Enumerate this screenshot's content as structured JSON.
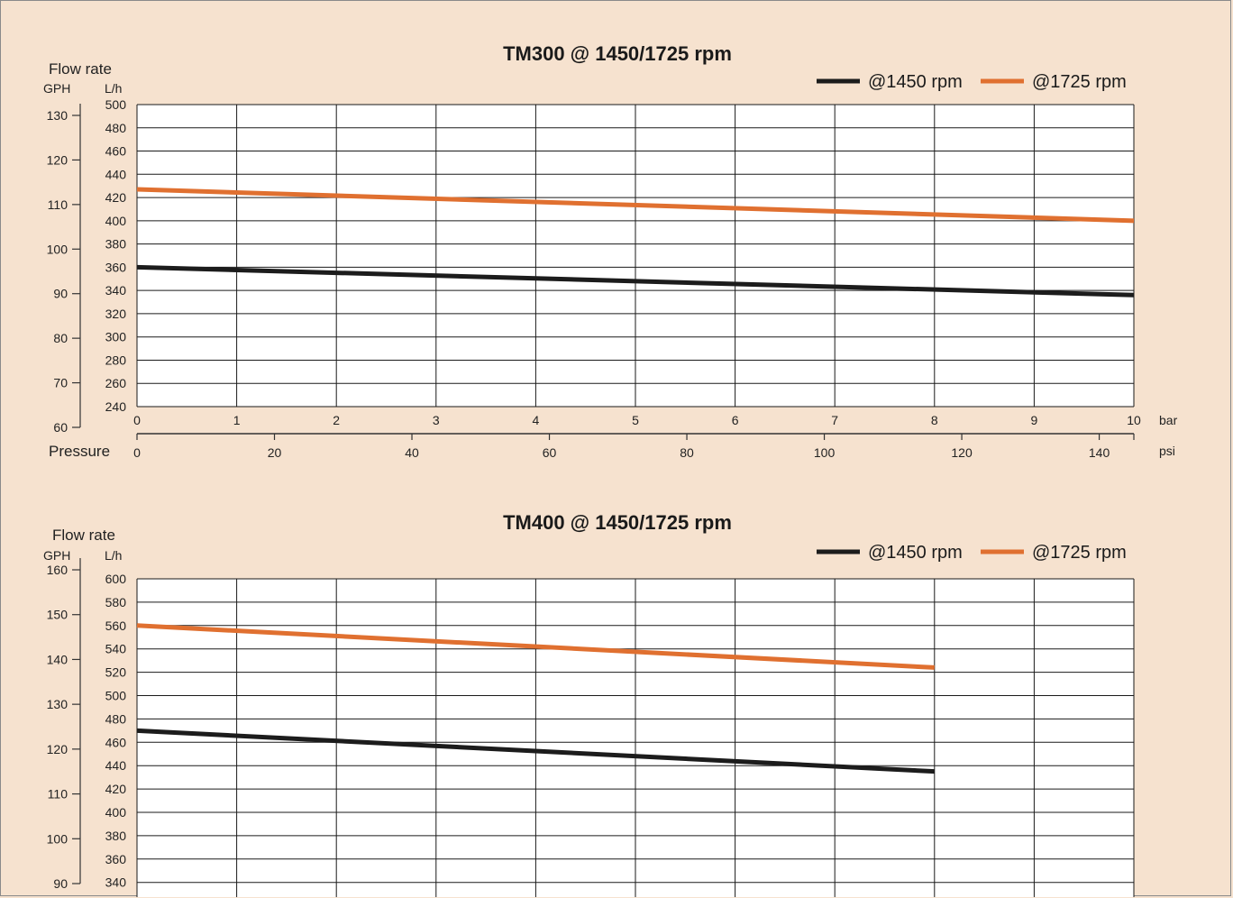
{
  "colors": {
    "background": "#f6e2cf",
    "plot_bg": "#ffffff",
    "grid": "#1a1a1a",
    "series_1450": "#1c1c1c",
    "series_1725": "#e07030"
  },
  "chart_data": [
    {
      "type": "line",
      "title": "TM300 @ 1450/1725 rpm",
      "flow_rate_label": "Flow rate",
      "ylabel_gph": "GPH",
      "ylabel_lh": "L/h",
      "xlabel": "Pressure",
      "x_unit_bar": "bar",
      "x_unit_psi": "psi",
      "bar_ticks": [
        "0",
        "1",
        "2",
        "3",
        "4",
        "5",
        "6",
        "7",
        "8",
        "9",
        "10"
      ],
      "psi_ticks": [
        "0",
        "20",
        "40",
        "60",
        "80",
        "100",
        "120",
        "140"
      ],
      "lh_ticks": [
        "240",
        "260",
        "280",
        "300",
        "320",
        "340",
        "360",
        "380",
        "400",
        "420",
        "440",
        "460",
        "480",
        "500"
      ],
      "gph_ticks": [
        "60",
        "70",
        "80",
        "90",
        "100",
        "110",
        "120",
        "130"
      ],
      "ylim_lh": [
        240,
        500
      ],
      "xlim_bar": [
        0,
        10
      ],
      "grid": true,
      "legend": "top-right",
      "series": [
        {
          "name": "@1450 rpm",
          "x": [
            0,
            10
          ],
          "y": [
            360,
            336
          ]
        },
        {
          "name": "@1725 rpm",
          "x": [
            0,
            10
          ],
          "y": [
            427,
            400
          ]
        }
      ]
    },
    {
      "type": "line",
      "title": "TM400 @ 1450/1725 rpm",
      "flow_rate_label": "Flow rate",
      "ylabel_gph": "GPH",
      "ylabel_lh": "L/h",
      "lh_ticks": [
        "340",
        "360",
        "380",
        "400",
        "420",
        "440",
        "460",
        "480",
        "500",
        "520",
        "540",
        "560",
        "580",
        "600"
      ],
      "gph_ticks": [
        "90",
        "100",
        "110",
        "120",
        "130",
        "140",
        "150",
        "160"
      ],
      "ylim_lh": [
        340,
        600
      ],
      "xlim_bar": [
        0,
        10
      ],
      "grid": true,
      "legend": "top-right",
      "series": [
        {
          "name": "@1450 rpm",
          "x": [
            0,
            8
          ],
          "y": [
            470,
            435
          ]
        },
        {
          "name": "@1725 rpm",
          "x": [
            0,
            8
          ],
          "y": [
            560,
            524
          ]
        }
      ]
    }
  ]
}
